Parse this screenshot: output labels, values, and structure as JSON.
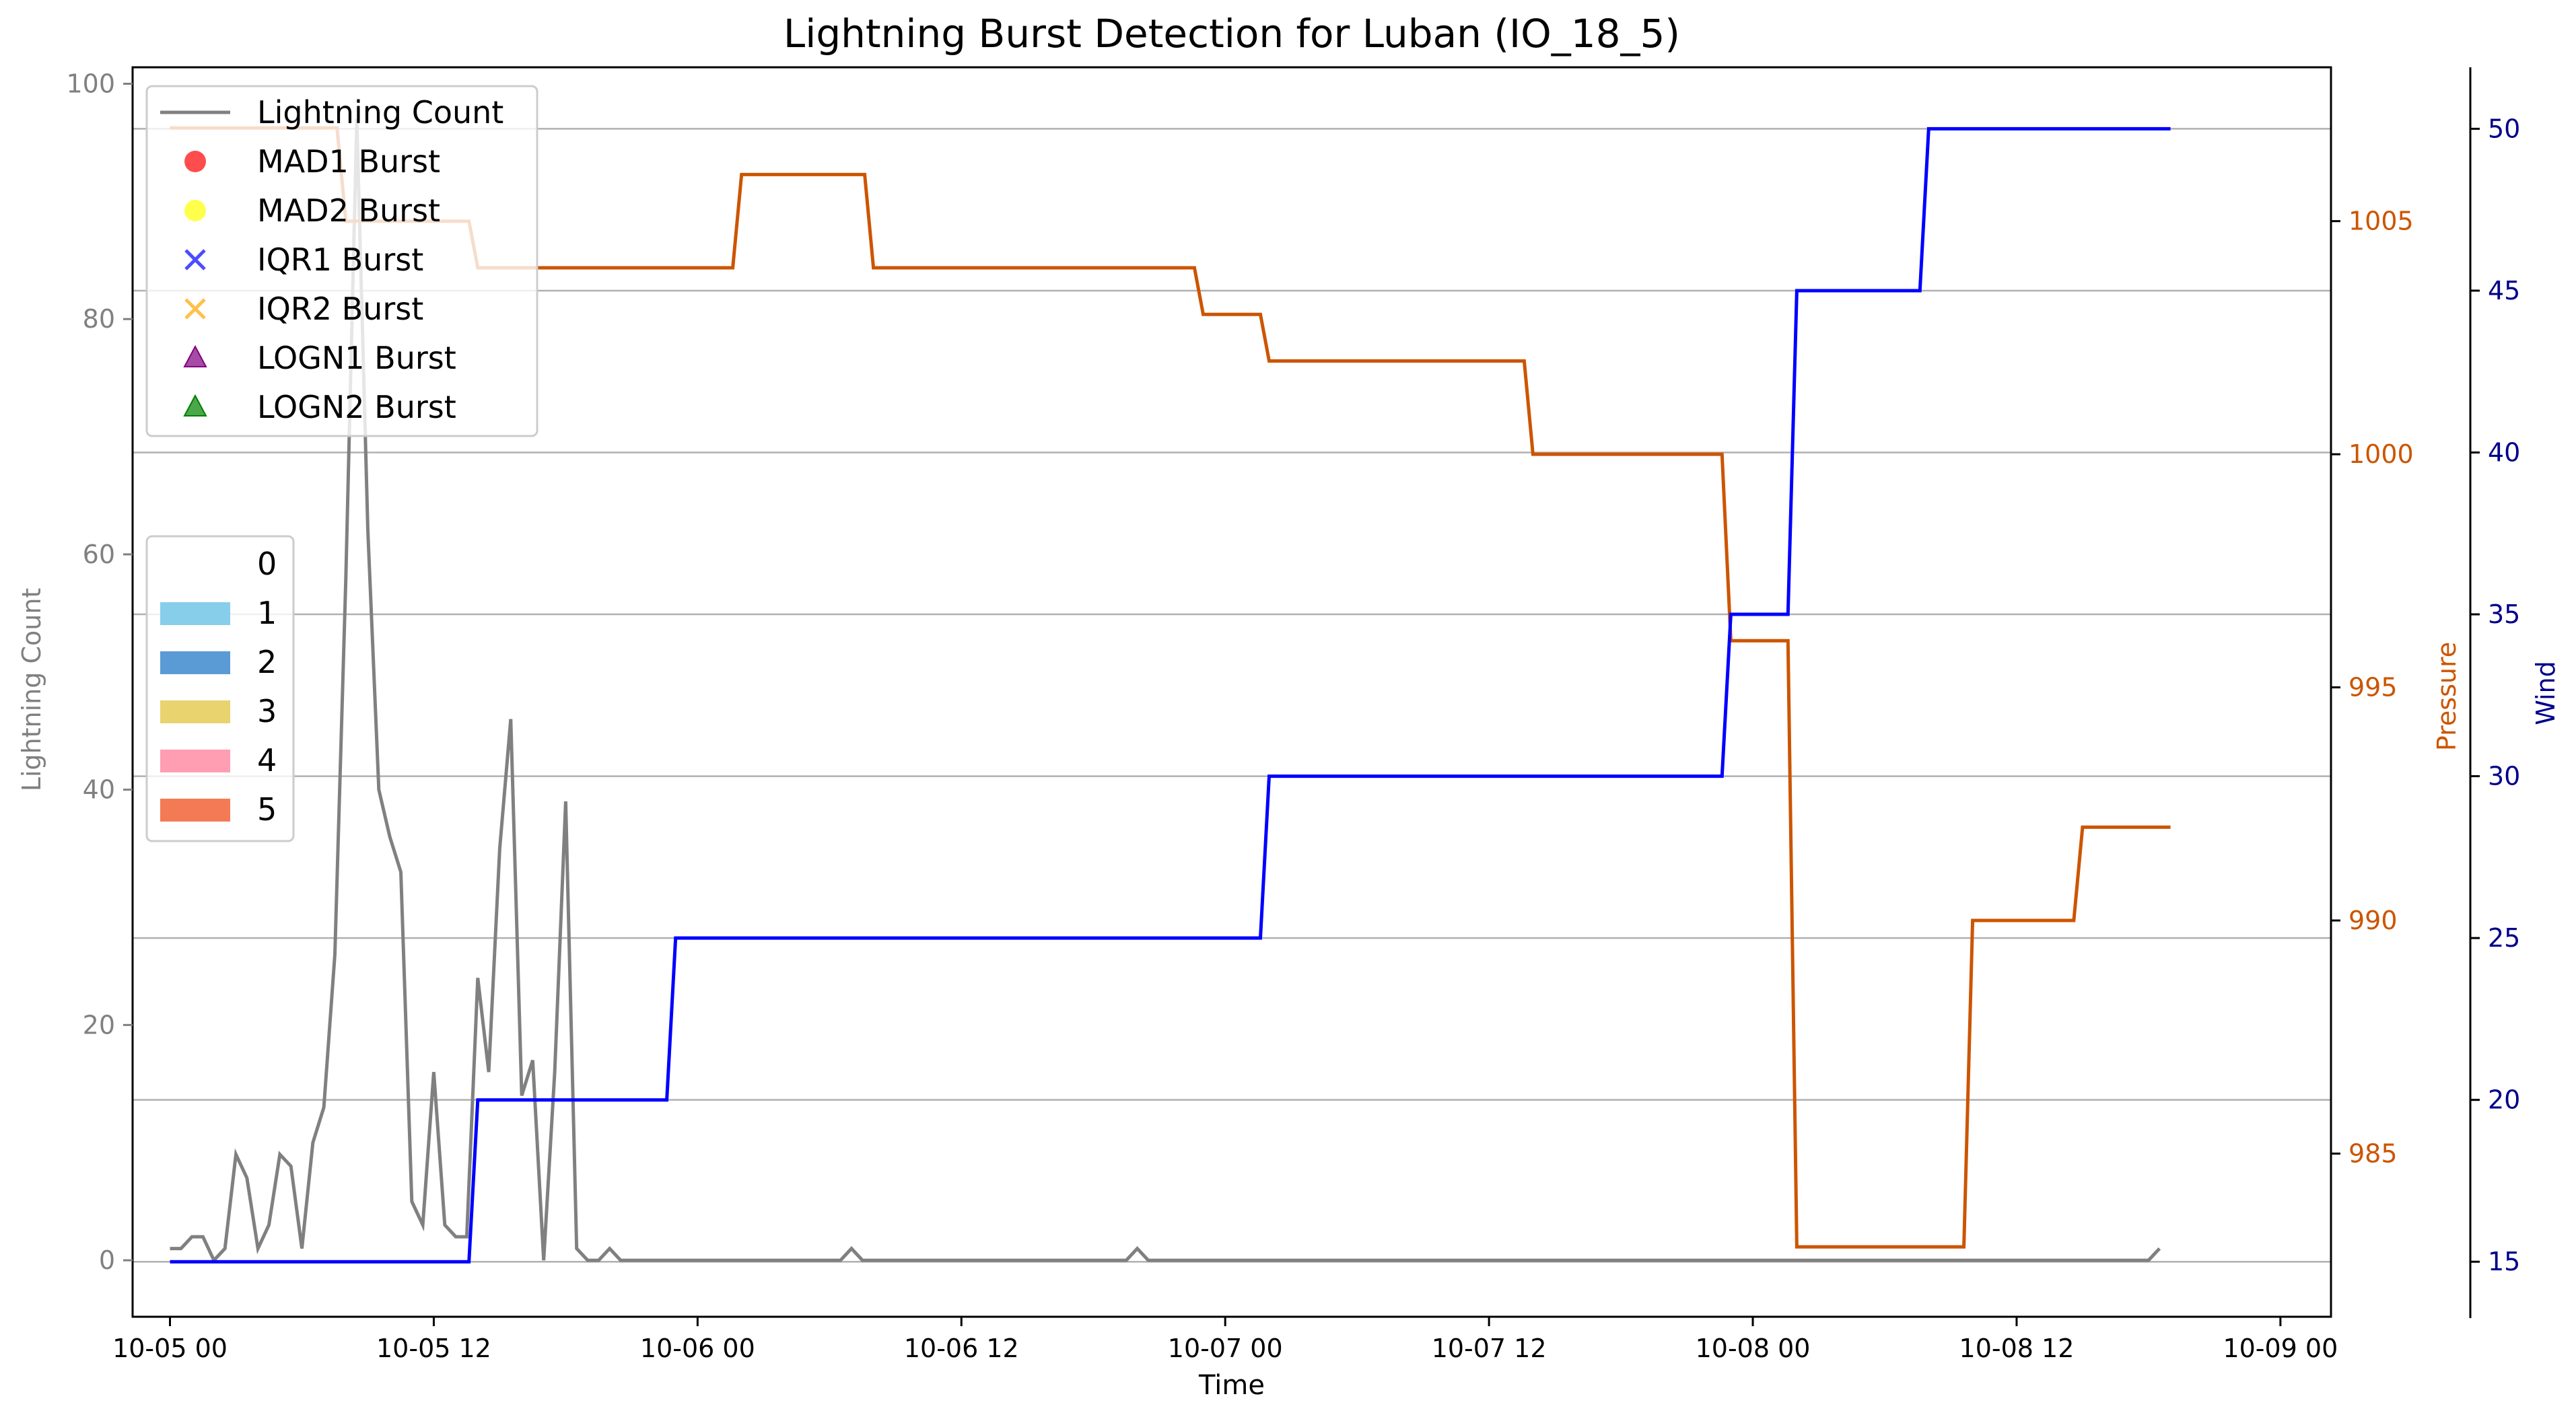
{
  "chart_data": {
    "type": "line",
    "title": "Lightning Burst Detection for Luban (IO_18_5)",
    "xlabel": "Time",
    "ylabel_left": "Lightning Count",
    "ylabel_pressure": "Pressure",
    "ylabel_wind": "Wind",
    "x_unit": "hours since 10-05 00",
    "xlim": [
      -1.7,
      98.3
    ],
    "x_ticks": [
      {
        "value": 0,
        "label": "10-05 00"
      },
      {
        "value": 12,
        "label": "10-05 12"
      },
      {
        "value": 24,
        "label": "10-06 00"
      },
      {
        "value": 36,
        "label": "10-06 12"
      },
      {
        "value": 48,
        "label": "10-07 00"
      },
      {
        "value": 60,
        "label": "10-07 12"
      },
      {
        "value": 72,
        "label": "10-08 00"
      },
      {
        "value": 84,
        "label": "10-08 12"
      },
      {
        "value": 96,
        "label": "10-09 00"
      }
    ],
    "ylim_left": [
      -4.8,
      101.4
    ],
    "yticks_left": [
      0,
      20,
      40,
      60,
      80,
      100
    ],
    "ylim_pressure": [
      981.5,
      1008.3
    ],
    "yticks_pressure": [
      985,
      990,
      995,
      1000,
      1005
    ],
    "ylim_wind": [
      13.3,
      51.9
    ],
    "yticks_wind": [
      15,
      20,
      25,
      30,
      35,
      40,
      45,
      50
    ],
    "grid": "horizontal",
    "legend_burst": {
      "placement": "top-left",
      "entries": [
        {
          "label": "Lightning Count",
          "marker": "line",
          "color": "#808080"
        },
        {
          "label": "MAD1 Burst",
          "marker": "circle",
          "color": "#ff0000"
        },
        {
          "label": "MAD2 Burst",
          "marker": "circle",
          "color": "#ffff00"
        },
        {
          "label": "IQR1 Burst",
          "marker": "x",
          "color": "#0000ff"
        },
        {
          "label": "IQR2 Burst",
          "marker": "x",
          "color": "#ffa500"
        },
        {
          "label": "LOGN1 Burst",
          "marker": "triangle",
          "color": "#800080"
        },
        {
          "label": "LOGN2 Burst",
          "marker": "triangle",
          "color": "#008000"
        }
      ]
    },
    "legend_category": {
      "placement": "center-left",
      "entries": [
        {
          "label": "0",
          "color": "#ffffff"
        },
        {
          "label": "1",
          "color": "#87ceeb"
        },
        {
          "label": "2",
          "color": "#5b9bd5"
        },
        {
          "label": "3",
          "color": "#e8d36f"
        },
        {
          "label": "4",
          "color": "#ff9eb3"
        },
        {
          "label": "5",
          "color": "#f47a55"
        }
      ]
    },
    "series": [
      {
        "name": "Lightning Count",
        "axis": "left",
        "color": "#808080",
        "x": [
          0,
          0.5,
          1,
          1.5,
          2,
          2.5,
          3,
          3.5,
          4,
          4.5,
          5,
          5.5,
          6,
          6.5,
          7,
          7.5,
          8,
          8.5,
          9,
          9.5,
          10,
          10.5,
          11,
          11.5,
          12,
          12.5,
          13,
          13.5,
          14,
          14.5,
          15,
          15.5,
          16,
          16.5,
          17,
          17.5,
          18,
          18.5,
          19,
          19.5,
          20,
          20.5,
          21,
          30.5,
          31,
          31.5,
          43.5,
          44,
          44.5,
          90,
          90.5
        ],
        "values": [
          1,
          1,
          2,
          2,
          0,
          1,
          9,
          7,
          1,
          3,
          9,
          8,
          1,
          10,
          13,
          26,
          58,
          97,
          62,
          40,
          36,
          33,
          5,
          3,
          16,
          3,
          2,
          2,
          24,
          16,
          35,
          46,
          14,
          17,
          0,
          16,
          39,
          1,
          0,
          0,
          1,
          0,
          0,
          0,
          1,
          0,
          0,
          1,
          0,
          0,
          1
        ]
      },
      {
        "name": "Pressure",
        "axis": "pressure",
        "color": "#cc5500",
        "x": [
          0,
          7.6,
          8,
          13.6,
          14,
          25.6,
          26,
          31.6,
          32,
          46.6,
          47,
          49.6,
          50,
          61.6,
          62,
          70.6,
          71,
          73.6,
          74,
          81.6,
          82,
          86.6,
          87,
          91
        ],
        "values": [
          1007,
          1007,
          1005,
          1005,
          1004,
          1004,
          1006,
          1006,
          1004,
          1004,
          1003,
          1003,
          1002,
          1002,
          1000,
          1000,
          996,
          996,
          983,
          983,
          990,
          990,
          992,
          992
        ]
      },
      {
        "name": "Wind",
        "axis": "wind",
        "color": "#0000ff",
        "x": [
          0,
          13.6,
          14,
          22.6,
          23,
          49.6,
          50,
          70.6,
          71,
          73.6,
          74,
          79.6,
          80,
          91
        ],
        "values": [
          15,
          15,
          20,
          20,
          25,
          25,
          30,
          30,
          35,
          35,
          45,
          45,
          50,
          50
        ]
      }
    ]
  }
}
